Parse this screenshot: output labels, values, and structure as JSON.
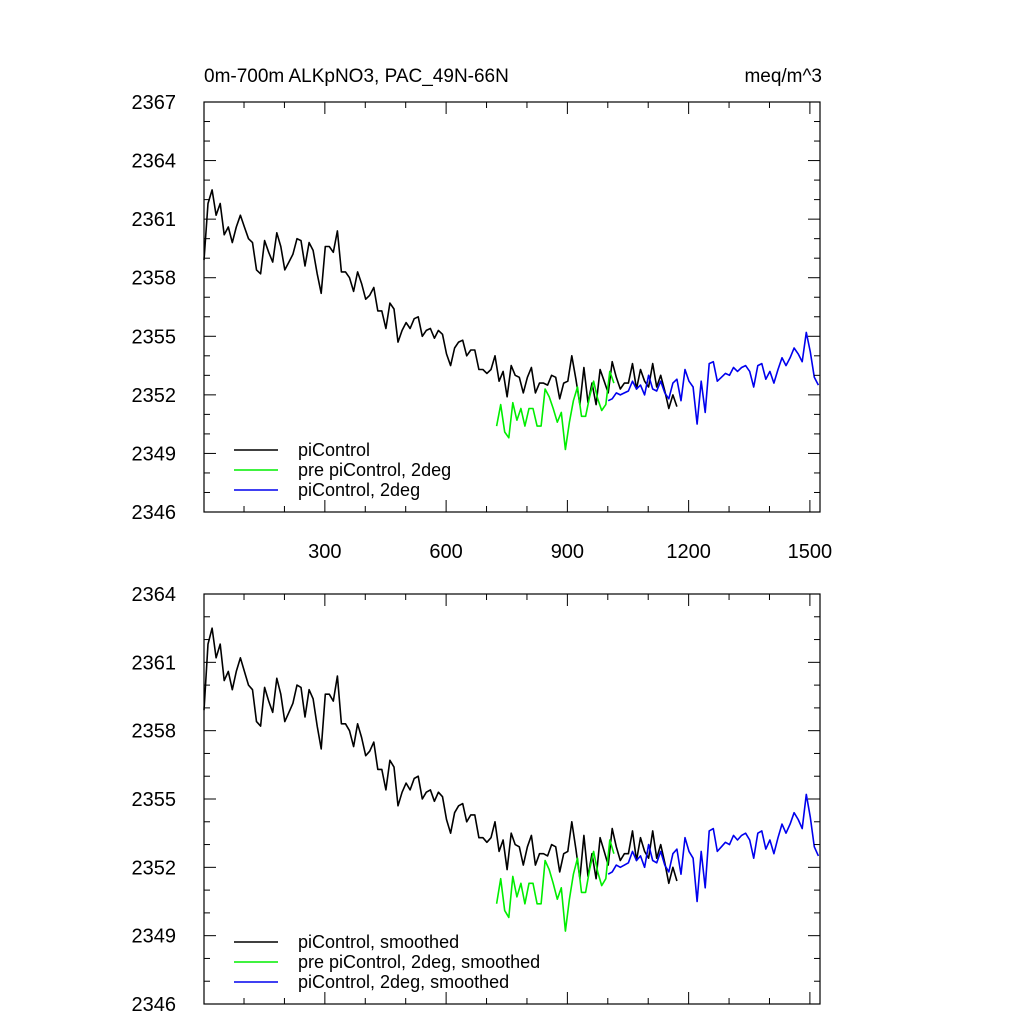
{
  "figure": {
    "title_left": "0m-700m ALKpNO3, PAC_49N-66N",
    "title_right": "meq/m^3"
  },
  "colors": {
    "piControl": "#000000",
    "pre_piControl_2deg": "#00ee00",
    "piControl_2deg": "#0000ee"
  },
  "chart_data": [
    {
      "type": "line",
      "title": "0m-700m ALKpNO3, PAC_49N-66N",
      "units": "meq/m^3",
      "xlim": [
        1,
        1525
      ],
      "ylim": [
        2346,
        2367
      ],
      "x_ticks": [
        300,
        600,
        900,
        1200,
        1500
      ],
      "y_ticks": [
        2346,
        2349,
        2352,
        2355,
        2358,
        2361,
        2364,
        2367
      ],
      "legend_position": "bottom-left",
      "grid": false,
      "series": [
        {
          "name": "piControl",
          "color": "#000000",
          "x_start": 1,
          "x_step": 10,
          "values": [
            2358.9,
            2361.8,
            2362.5,
            2361.2,
            2361.8,
            2360.2,
            2360.6,
            2359.8,
            2360.6,
            2361.2,
            2360.6,
            2360.0,
            2359.8,
            2358.4,
            2358.2,
            2359.9,
            2359.3,
            2358.8,
            2360.3,
            2359.6,
            2358.4,
            2358.8,
            2359.2,
            2360.0,
            2359.9,
            2358.6,
            2359.8,
            2359.4,
            2358.2,
            2357.2,
            2359.6,
            2359.6,
            2359.3,
            2360.4,
            2358.3,
            2358.3,
            2358.0,
            2357.3,
            2358.3,
            2357.7,
            2356.9,
            2357.1,
            2357.5,
            2356.3,
            2356.3,
            2355.4,
            2356.7,
            2356.4,
            2354.7,
            2355.3,
            2355.7,
            2355.4,
            2355.9,
            2356.0,
            2355.0,
            2355.3,
            2355.4,
            2354.9,
            2355.3,
            2355.1,
            2354.1,
            2353.5,
            2354.4,
            2354.7,
            2354.8,
            2354.0,
            2354.3,
            2354.3,
            2353.3,
            2353.3,
            2353.1,
            2353.3,
            2354.0,
            2352.7,
            2353.2,
            2351.9,
            2353.5,
            2353.0,
            2352.9,
            2352.1,
            2352.9,
            2353.4,
            2352.1,
            2352.6,
            2352.6,
            2352.5,
            2353.0,
            2352.9,
            2351.8,
            2352.6,
            2352.7,
            2354.0,
            2352.8,
            2351.5,
            2353.4,
            2351.6,
            2352.6,
            2351.5,
            2353.3,
            2352.7,
            2352.1,
            2353.7,
            2352.9,
            2352.3,
            2352.6,
            2352.6,
            2353.6,
            2352.3,
            2353.3,
            2352.7,
            2352.4,
            2353.6,
            2352.4,
            2353.0,
            2352.2,
            2351.3,
            2352.0,
            2351.4
          ]
        },
        {
          "name": "pre piControl, 2deg",
          "color": "#00ee00",
          "x_start": 725,
          "x_step": 10,
          "values": [
            2350.4,
            2351.5,
            2350.1,
            2349.8,
            2351.6,
            2350.7,
            2351.3,
            2350.4,
            2351.3,
            2351.3,
            2350.4,
            2350.4,
            2352.3,
            2351.9,
            2351.3,
            2350.6,
            2351.1,
            2349.2,
            2350.6,
            2351.7,
            2352.4,
            2350.9,
            2350.9,
            2351.9,
            2352.7,
            2351.8,
            2351.2,
            2351.5,
            2353.2,
            2352.6
          ]
        },
        {
          "name": "piControl, 2deg",
          "color": "#0000ee",
          "x_start": 1001,
          "x_step": 10,
          "values": [
            2351.7,
            2351.8,
            2352.1,
            2352.0,
            2352.1,
            2352.2,
            2352.7,
            2352.3,
            2352.5,
            2352.0,
            2353.0,
            2352.3,
            2352.2,
            2352.7,
            2352.1,
            2351.8,
            2352.6,
            2352.8,
            2351.7,
            2353.3,
            2352.7,
            2352.4,
            2350.5,
            2352.7,
            2351.1,
            2353.6,
            2353.7,
            2352.7,
            2352.9,
            2353.1,
            2353.0,
            2353.4,
            2353.2,
            2353.4,
            2353.5,
            2353.2,
            2352.4,
            2353.5,
            2353.6,
            2352.8,
            2353.2,
            2352.6,
            2353.3,
            2353.9,
            2353.5,
            2353.9,
            2354.4,
            2354.1,
            2353.7,
            2355.2,
            2354.2,
            2352.9,
            2352.5
          ]
        }
      ]
    },
    {
      "type": "line",
      "xlim": [
        1,
        1525
      ],
      "ylim": [
        2346,
        2364
      ],
      "x_ticks": [
        300,
        600,
        900,
        1200,
        1500
      ],
      "y_ticks": [
        2346,
        2349,
        2352,
        2355,
        2358,
        2361,
        2364
      ],
      "legend_position": "bottom-left",
      "grid": false,
      "series": [
        {
          "name": "piControl, smoothed",
          "color": "#000000",
          "x_start": 1,
          "x_step": 10,
          "values": [
            2358.9,
            2361.8,
            2362.5,
            2361.2,
            2361.8,
            2360.2,
            2360.6,
            2359.8,
            2360.6,
            2361.2,
            2360.6,
            2360.0,
            2359.8,
            2358.4,
            2358.2,
            2359.9,
            2359.3,
            2358.8,
            2360.3,
            2359.6,
            2358.4,
            2358.8,
            2359.2,
            2360.0,
            2359.9,
            2358.6,
            2359.8,
            2359.4,
            2358.2,
            2357.2,
            2359.6,
            2359.6,
            2359.3,
            2360.4,
            2358.3,
            2358.3,
            2358.0,
            2357.3,
            2358.3,
            2357.7,
            2356.9,
            2357.1,
            2357.5,
            2356.3,
            2356.3,
            2355.4,
            2356.7,
            2356.4,
            2354.7,
            2355.3,
            2355.7,
            2355.4,
            2355.9,
            2356.0,
            2355.0,
            2355.3,
            2355.4,
            2354.9,
            2355.3,
            2355.1,
            2354.1,
            2353.5,
            2354.4,
            2354.7,
            2354.8,
            2354.0,
            2354.3,
            2354.3,
            2353.3,
            2353.3,
            2353.1,
            2353.3,
            2354.0,
            2352.7,
            2353.2,
            2351.9,
            2353.5,
            2353.0,
            2352.9,
            2352.1,
            2352.9,
            2353.4,
            2352.1,
            2352.6,
            2352.6,
            2352.5,
            2353.0,
            2352.9,
            2351.8,
            2352.6,
            2352.7,
            2354.0,
            2352.8,
            2351.5,
            2353.4,
            2351.6,
            2352.6,
            2351.5,
            2353.3,
            2352.7,
            2352.1,
            2353.7,
            2352.9,
            2352.3,
            2352.6,
            2352.6,
            2353.6,
            2352.3,
            2353.3,
            2352.7,
            2352.4,
            2353.6,
            2352.4,
            2353.0,
            2352.2,
            2351.3,
            2352.0,
            2351.4
          ]
        },
        {
          "name": "pre piControl, 2deg, smoothed",
          "color": "#00ee00",
          "x_start": 725,
          "x_step": 10,
          "values": [
            2350.4,
            2351.5,
            2350.1,
            2349.8,
            2351.6,
            2350.7,
            2351.3,
            2350.4,
            2351.3,
            2351.3,
            2350.4,
            2350.4,
            2352.3,
            2351.9,
            2351.3,
            2350.6,
            2351.1,
            2349.2,
            2350.6,
            2351.7,
            2352.4,
            2350.9,
            2350.9,
            2351.9,
            2352.7,
            2351.8,
            2351.2,
            2351.5,
            2353.2,
            2352.6
          ]
        },
        {
          "name": "piControl, 2deg, smoothed",
          "color": "#0000ee",
          "x_start": 1001,
          "x_step": 10,
          "values": [
            2351.7,
            2351.8,
            2352.1,
            2352.0,
            2352.1,
            2352.2,
            2352.7,
            2352.3,
            2352.5,
            2352.0,
            2353.0,
            2352.3,
            2352.2,
            2352.7,
            2352.1,
            2351.8,
            2352.6,
            2352.8,
            2351.7,
            2353.3,
            2352.7,
            2352.4,
            2350.5,
            2352.7,
            2351.1,
            2353.6,
            2353.7,
            2352.7,
            2352.9,
            2353.1,
            2353.0,
            2353.4,
            2353.2,
            2353.4,
            2353.5,
            2353.2,
            2352.4,
            2353.5,
            2353.6,
            2352.8,
            2353.2,
            2352.6,
            2353.3,
            2353.9,
            2353.5,
            2353.9,
            2354.4,
            2354.1,
            2353.7,
            2355.2,
            2354.2,
            2352.9,
            2352.5
          ]
        }
      ]
    }
  ]
}
